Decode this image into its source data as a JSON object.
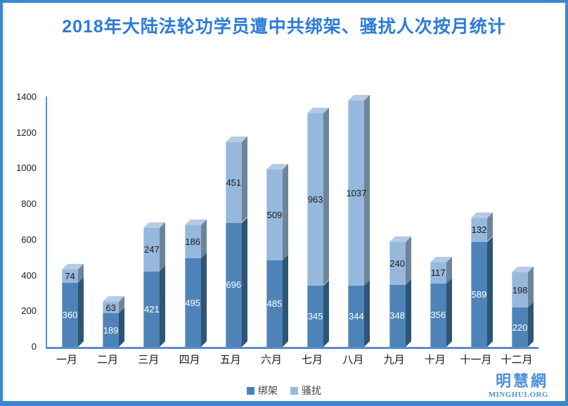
{
  "title": "2018年大陆法轮功学员遭中共绑架、骚扰人次按月统计",
  "chart_data": {
    "type": "bar",
    "stacked": true,
    "style": "3d",
    "title": "2018年大陆法轮功学员遭中共绑架、骚扰人次按月统计",
    "categories": [
      "一月",
      "二月",
      "三月",
      "四月",
      "五月",
      "六月",
      "七月",
      "八月",
      "九月",
      "十月",
      "十一月",
      "十二月"
    ],
    "series": [
      {
        "name": "绑架",
        "values": [
          360,
          189,
          421,
          495,
          696,
          485,
          345,
          344,
          348,
          356,
          589,
          220
        ],
        "front_color": "#4d83b7",
        "side_color": "#2e5476",
        "top_color": "#7f9cba",
        "label_color": "#ffffff"
      },
      {
        "name": "骚扰",
        "values": [
          74,
          63,
          247,
          186,
          451,
          509,
          963,
          1037,
          240,
          117,
          132,
          198
        ],
        "front_color": "#97b8dd",
        "side_color": "#6e8499",
        "top_color": "#b5cae4",
        "label_color": "#1a1a1a"
      }
    ],
    "ylim": [
      0,
      1400
    ],
    "yticks": [
      "0",
      "200",
      "400",
      "600",
      "800",
      "1000",
      "1200",
      "1400"
    ],
    "grid": false,
    "legend_position": "bottom",
    "value_labels": true
  },
  "branding": {
    "logo_cn": "明慧網",
    "logo_en": "MINGHUI.ORG"
  },
  "colors": {
    "frame_border": "#3b86d1",
    "title_text": "#2b7bd9",
    "axis_line": "#5b8ec8",
    "tick_text": "#1a1a1a",
    "legend_text": "#3f3f3f",
    "logo_blue": "#4a90dc"
  }
}
